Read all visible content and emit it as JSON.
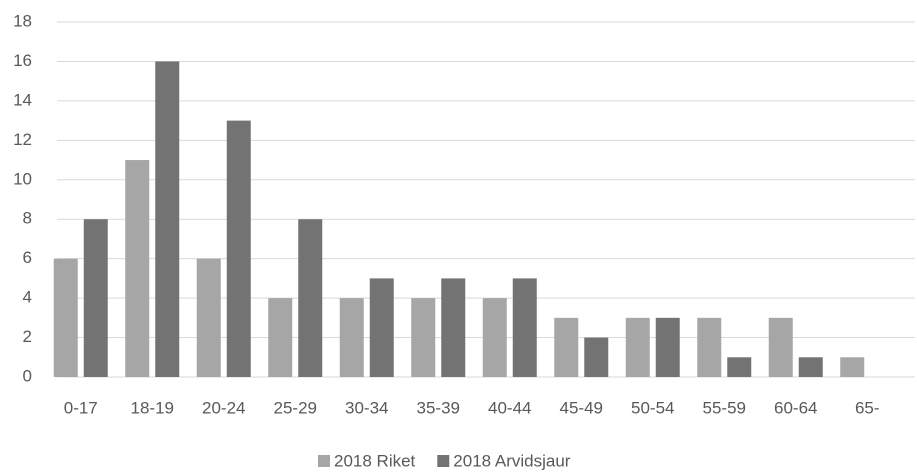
{
  "chart_data": {
    "type": "bar",
    "categories": [
      "0-17",
      "18-19",
      "20-24",
      "25-29",
      "30-34",
      "35-39",
      "40-44",
      "45-49",
      "50-54",
      "55-59",
      "60-64",
      "65-"
    ],
    "series": [
      {
        "name": "2018 Riket",
        "color": "#a6a6a6",
        "values": [
          6,
          11,
          6,
          4,
          4,
          4,
          4,
          3,
          3,
          3,
          3,
          1
        ]
      },
      {
        "name": "2018 Arvidsjaur",
        "color": "#737373",
        "values": [
          8,
          16,
          13,
          8,
          5,
          5,
          5,
          2,
          3,
          1,
          1,
          null
        ]
      }
    ],
    "ylim": [
      0,
      18
    ],
    "yticks": [
      0,
      2,
      4,
      6,
      8,
      10,
      12,
      14,
      16,
      18
    ],
    "grid": true,
    "legend": "bottom"
  }
}
